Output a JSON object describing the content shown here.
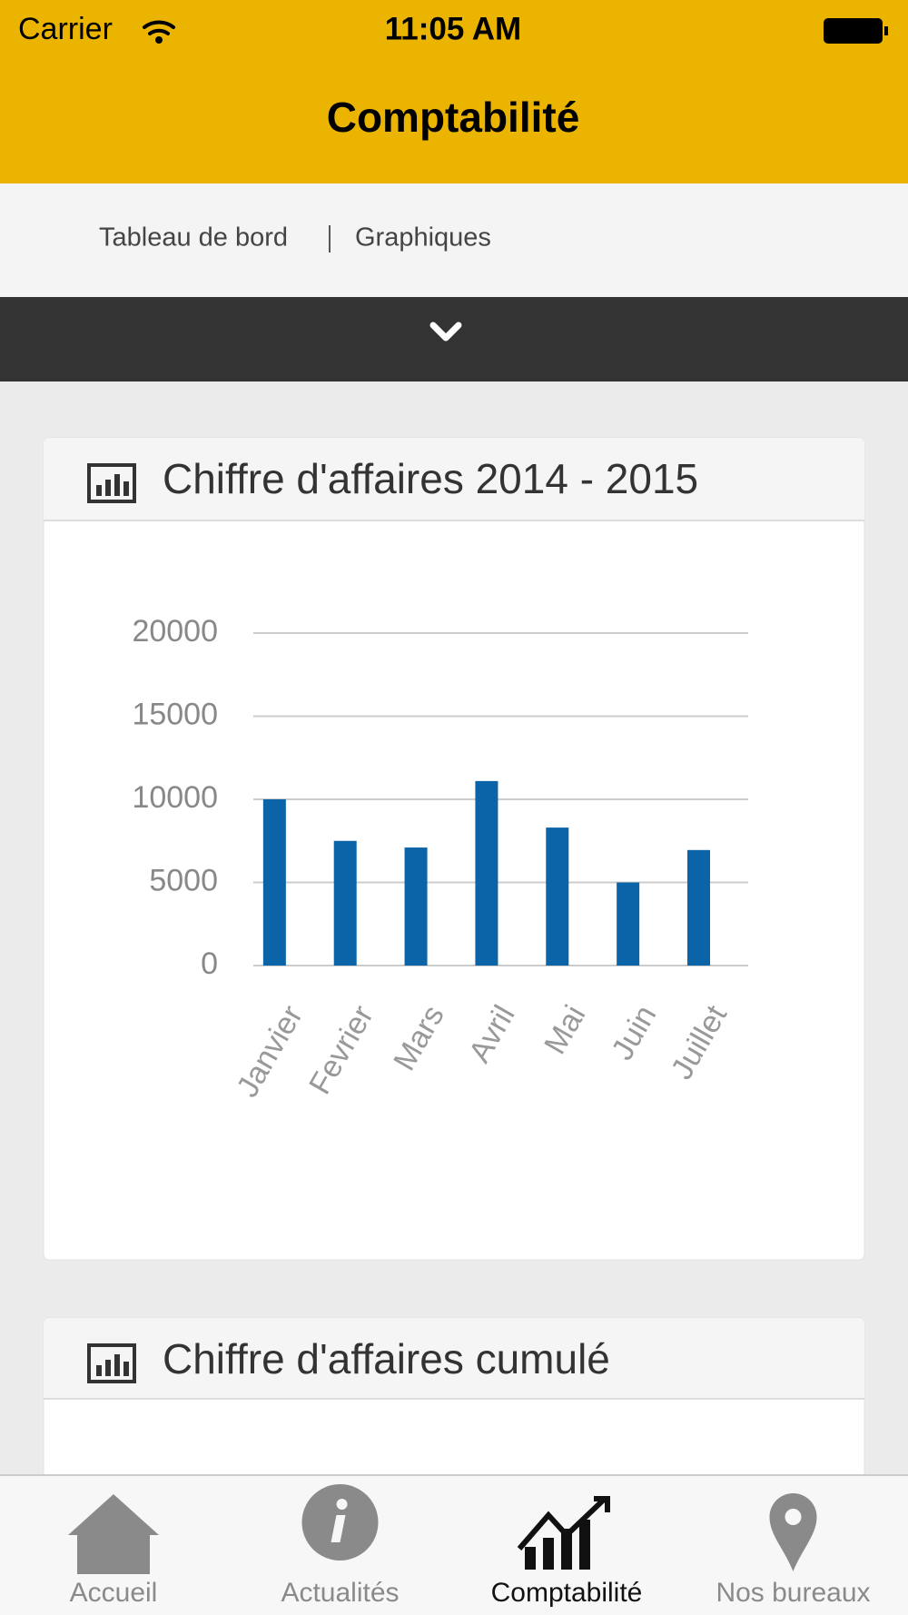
{
  "status_bar": {
    "carrier": "Carrier",
    "time": "11:05 AM"
  },
  "header": {
    "title": "Comptabilité"
  },
  "tabs": [
    "Tableau de bord",
    "Graphiques"
  ],
  "chart_data": {
    "type": "bar",
    "title": "Chiffre d'affaires 2014 - 2015",
    "categories": [
      "Janvier",
      "Fevrier",
      "Mars",
      "Avril",
      "Mai",
      "Juin",
      "Juillet"
    ],
    "values": [
      10000,
      7500,
      7100,
      11100,
      8300,
      5000,
      6950
    ],
    "color": "#0b64a8",
    "ylim": [
      0,
      20000
    ],
    "yticks": [
      0,
      5000,
      10000,
      15000,
      20000
    ],
    "grid": true
  },
  "cards": [
    {
      "title": "Chiffre d'affaires cumulé"
    }
  ],
  "tab_bar": {
    "items": [
      "Accueil",
      "Actualités",
      "Comptabilité",
      "Nos bureaux"
    ],
    "active": 2
  }
}
